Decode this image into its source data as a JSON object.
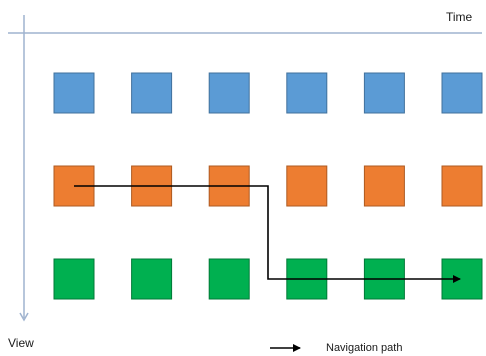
{
  "axes": {
    "time_label": "Time",
    "view_label": "View",
    "axis_color": "#9fb3cf"
  },
  "grid": {
    "columns": 6,
    "rows": [
      {
        "color": "#5b9bd5",
        "border": "#41719c"
      },
      {
        "color": "#ed7d31",
        "border": "#ae5a21"
      },
      {
        "color": "#00b050",
        "border": "#007a37"
      }
    ]
  },
  "navigation_path": {
    "color": "#000000",
    "points": [
      {
        "view": 1,
        "time": 0
      },
      {
        "view": 1,
        "time": 2.5
      },
      {
        "view": 2,
        "time": 2.5
      },
      {
        "view": 2,
        "time": 5
      }
    ]
  },
  "legend": {
    "label": "Navigation path",
    "color": "#000000"
  }
}
